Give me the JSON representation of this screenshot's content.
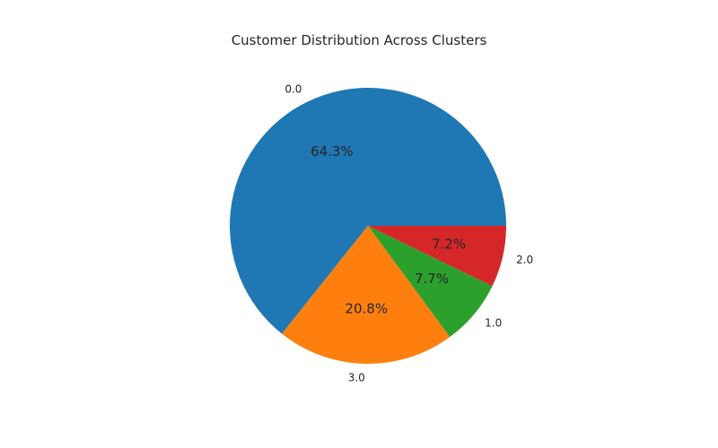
{
  "chart_data": {
    "type": "pie",
    "title": "Customer Distribution Across Clusters",
    "categories": [
      "0.0",
      "3.0",
      "1.0",
      "2.0"
    ],
    "values": [
      64.3,
      20.8,
      7.7,
      7.2
    ],
    "pct_labels": [
      "64.3%",
      "20.8%",
      "7.7%",
      "7.2%"
    ],
    "colors": [
      "#1f77b4",
      "#ff7f0e",
      "#2ca02c",
      "#d62728"
    ],
    "start_angle_deg": 0,
    "direction": "counterclockwise",
    "legend": "none"
  }
}
